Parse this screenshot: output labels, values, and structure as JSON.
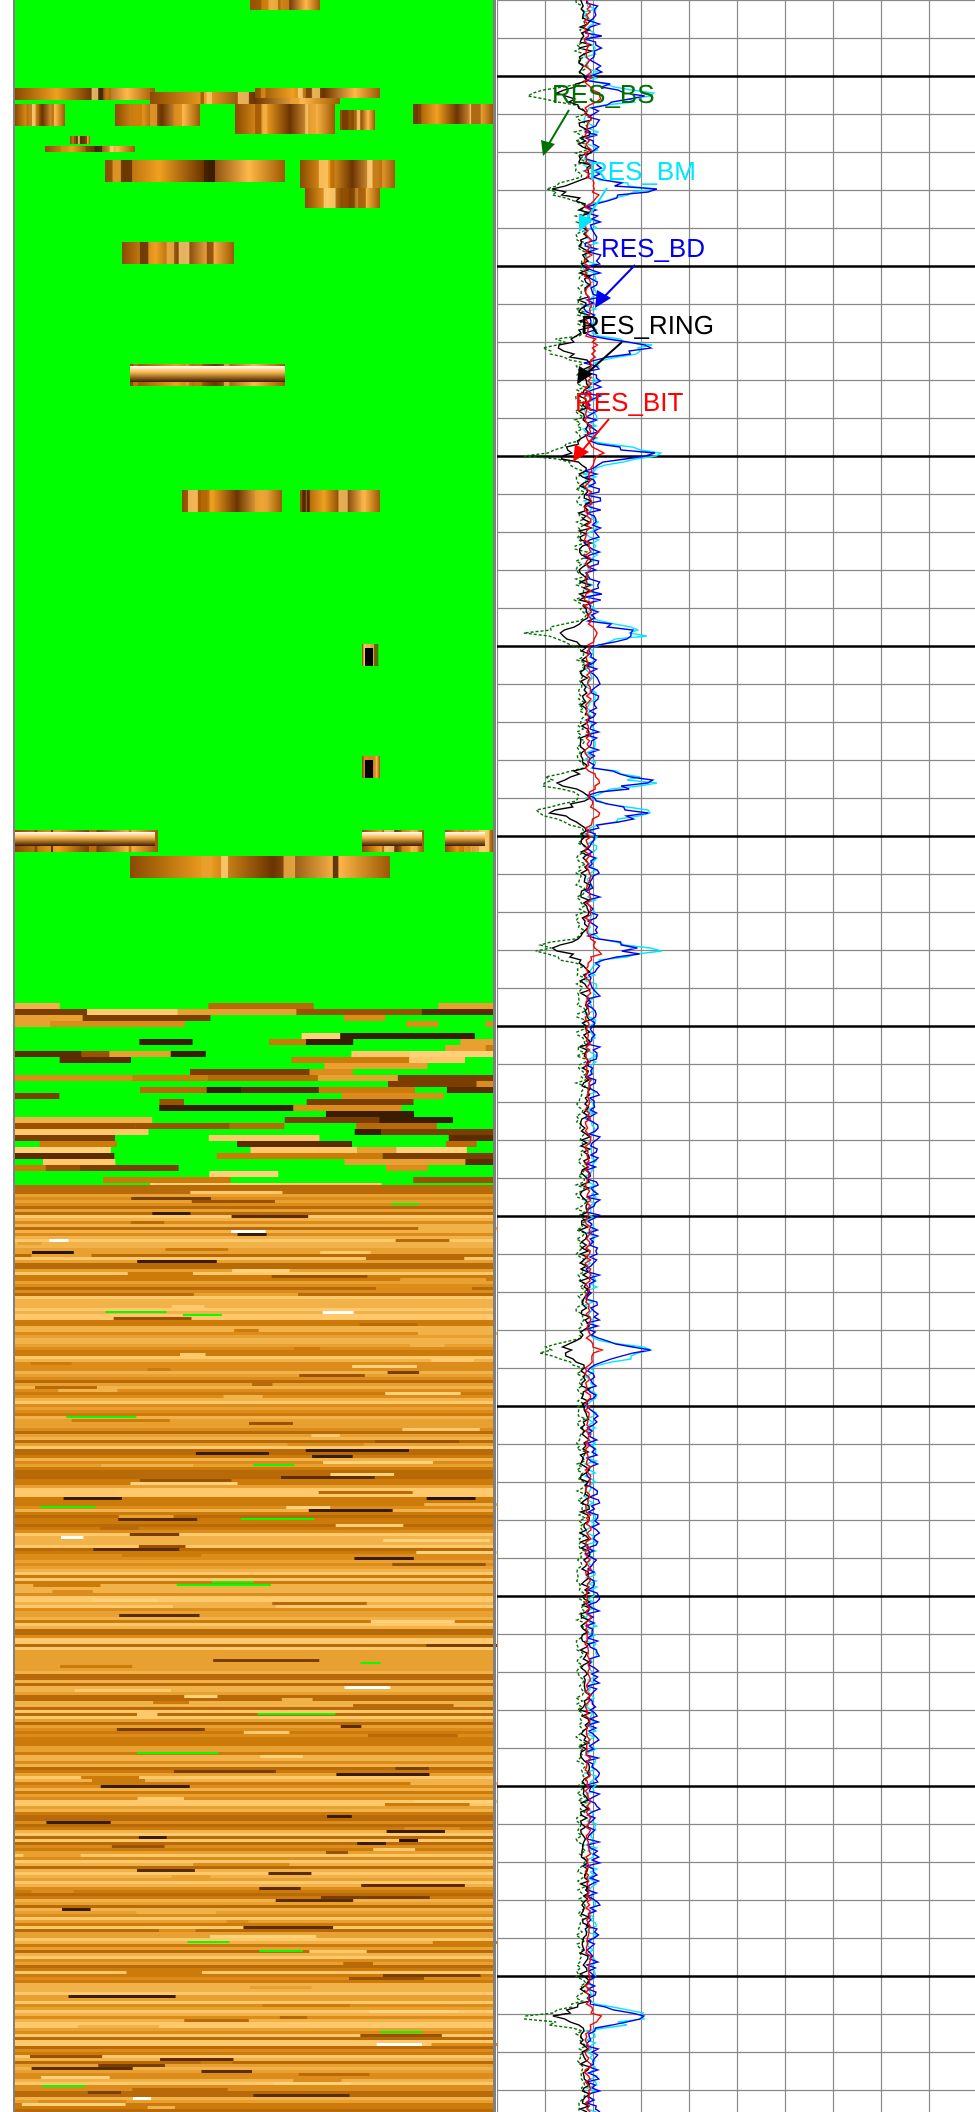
{
  "chart_data": [
    {
      "type": "heatmap",
      "description_role": "borehole resistivity image",
      "palette": {
        "no_data": "#00ff00",
        "dark": "#3a1c00",
        "mid": "#cc7a0a",
        "light": "#ffd27a",
        "white": "#ffffff",
        "frame": "#808080"
      },
      "coverage": [
        {
          "zone": "top",
          "from_fraction": 0.0,
          "to_fraction": 0.475,
          "state": "mostly no-data with sparse image strips"
        },
        {
          "zone": "transition",
          "from_fraction": 0.475,
          "to_fraction": 0.56,
          "state": "alternating image and no-data bands"
        },
        {
          "zone": "bottom",
          "from_fraction": 0.56,
          "to_fraction": 1.0,
          "state": "continuous brown laminated image"
        }
      ]
    },
    {
      "type": "line",
      "grid": true,
      "grid_color": "#888888",
      "major_grid_color": "#000000",
      "series": [
        {
          "name": "RES_BS",
          "color": "#007000",
          "label_text": "RES_BS"
        },
        {
          "name": "RES_BM",
          "color": "#00e6ff",
          "label_text": "RES_BM"
        },
        {
          "name": "RES_BD",
          "color": "#0000ee",
          "label_text": "RES_BD"
        },
        {
          "name": "RES_RING",
          "color": "#000000",
          "label_text": "RES_RING"
        },
        {
          "name": "RES_BIT",
          "color": "#ff0000",
          "label_text": "RES_BIT"
        }
      ],
      "spike_zones_fraction": [
        0.045,
        0.09,
        0.165,
        0.215,
        0.3,
        0.37,
        0.385,
        0.45,
        0.64,
        0.955
      ]
    }
  ]
}
